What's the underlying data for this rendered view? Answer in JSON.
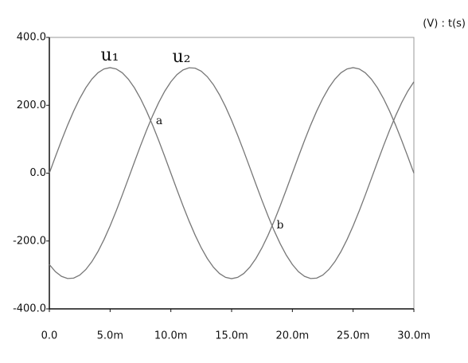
{
  "chart_data": {
    "type": "line",
    "axis_label": "(V) : t(s)",
    "annotations": [
      "u₁",
      "u₂",
      "a",
      "b"
    ],
    "x": [
      0,
      0.0005,
      0.001,
      0.0015,
      0.002,
      0.0025,
      0.003,
      0.0035,
      0.004,
      0.0045,
      0.005,
      0.0055,
      0.006,
      0.0065,
      0.007,
      0.0075,
      0.008,
      0.0085,
      0.009,
      0.0095,
      0.01,
      0.0105,
      0.011,
      0.0115,
      0.012,
      0.0125,
      0.013,
      0.0135,
      0.014,
      0.0145,
      0.015,
      0.0155,
      0.016,
      0.0165,
      0.017,
      0.0175,
      0.018,
      0.0185,
      0.019,
      0.0195,
      0.02,
      0.0205,
      0.021,
      0.0215,
      0.022,
      0.0225,
      0.023,
      0.0235,
      0.024,
      0.0245,
      0.025,
      0.0255,
      0.026,
      0.0265,
      0.027,
      0.0275,
      0.028,
      0.0285,
      0.029,
      0.0295,
      0.03
    ],
    "series": [
      {
        "name": "u1",
        "color": "#777777",
        "values": [
          0,
          48.6,
          96.1,
          141.2,
          182.8,
          219.9,
          251.6,
          277.1,
          295.8,
          307.2,
          311,
          307.2,
          295.8,
          277.1,
          251.6,
          219.9,
          182.8,
          141.2,
          96.1,
          48.6,
          0,
          -48.6,
          -96.1,
          -141.2,
          -182.8,
          -219.9,
          -251.6,
          -277.1,
          -295.8,
          -307.2,
          -311,
          -307.2,
          -295.8,
          -277.1,
          -251.6,
          -219.9,
          -182.8,
          -141.2,
          -96.1,
          -48.6,
          0,
          48.6,
          96.1,
          141.2,
          182.8,
          219.9,
          251.6,
          277.1,
          295.8,
          307.2,
          311,
          307.2,
          295.8,
          277.1,
          251.6,
          219.9,
          182.8,
          141.2,
          96.1,
          48.6,
          0
        ]
      },
      {
        "name": "u2",
        "color": "#777777",
        "values": [
          -269.3,
          -290.3,
          -304.2,
          -310.6,
          -309.3,
          -300.4,
          -284.1,
          -260.8,
          -231.1,
          -195.7,
          -155.5,
          -111.5,
          -64.7,
          -16.3,
          32.5,
          80.5,
          126.5,
          169.4,
          208.1,
          241.7,
          269.3,
          290.3,
          304.2,
          310.6,
          309.3,
          300.4,
          284.1,
          260.8,
          231.1,
          195.7,
          155.5,
          111.5,
          64.7,
          16.3,
          -32.5,
          -80.5,
          -126.5,
          -169.4,
          -208.1,
          -241.7,
          -269.3,
          -290.3,
          -304.2,
          -310.6,
          -309.3,
          -300.4,
          -284.1,
          -260.8,
          -231.1,
          -195.7,
          -155.5,
          -111.5,
          -64.7,
          -16.3,
          32.5,
          80.5,
          126.5,
          169.4,
          208.1,
          241.7,
          269.3
        ]
      }
    ],
    "xlim": [
      0,
      0.03
    ],
    "xticks": [
      {
        "value": 0,
        "label": "0.0"
      },
      {
        "value": 0.005,
        "label": "5.0m"
      },
      {
        "value": 0.01,
        "label": "10.0m"
      },
      {
        "value": 0.015,
        "label": "15.0m"
      },
      {
        "value": 0.02,
        "label": "20.0m"
      },
      {
        "value": 0.025,
        "label": "25.0m"
      },
      {
        "value": 0.03,
        "label": "30.0m"
      }
    ],
    "ylim": [
      -400,
      400
    ],
    "yticks": [
      {
        "value": -400,
        "label": "-400.0"
      },
      {
        "value": -200,
        "label": "-200.0"
      },
      {
        "value": 0,
        "label": "0.0"
      },
      {
        "value": 200,
        "label": "200.0"
      },
      {
        "value": 400,
        "label": "400.0"
      }
    ],
    "grid": false
  }
}
